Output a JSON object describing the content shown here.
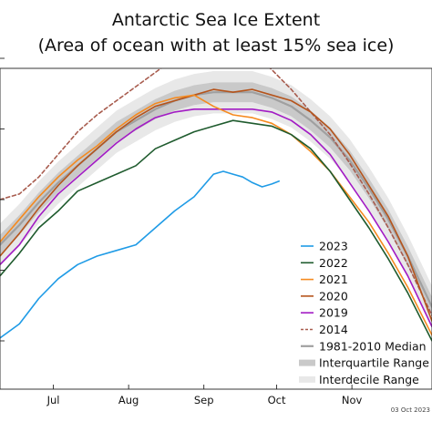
{
  "chart_data": {
    "type": "line",
    "title": "Antarctic Sea Ice Extent",
    "subtitle": "(Area of ocean with at least 15% sea ice)",
    "xlabel": "",
    "ylabel": "",
    "x_tick_labels": [
      "Jul",
      "Aug",
      "Sep",
      "Oct",
      "Nov"
    ],
    "x_day_of_year": {
      "range": [
        160,
        338
      ],
      "ticks": [
        182,
        213,
        244,
        274,
        305
      ]
    },
    "y_relative_scale": [
      0,
      1
    ],
    "legend_position": "lower-right",
    "footer_date": "03 Oct 2023",
    "series": [
      {
        "name": "2023",
        "style": "solid",
        "color": "#1f9be6",
        "width": 1.6,
        "x": [
          160,
          168,
          176,
          184,
          192,
          200,
          208,
          216,
          224,
          232,
          240,
          248,
          252,
          256,
          260,
          264,
          268,
          272,
          275
        ],
        "y": [
          0.11,
          0.16,
          0.25,
          0.32,
          0.37,
          0.4,
          0.42,
          0.44,
          0.5,
          0.56,
          0.61,
          0.69,
          0.7,
          0.69,
          0.68,
          0.66,
          0.645,
          0.655,
          0.665
        ]
      },
      {
        "name": "2022",
        "style": "solid",
        "color": "#1f5b2e",
        "width": 1.6,
        "x": [
          160,
          168,
          176,
          184,
          192,
          200,
          208,
          216,
          224,
          232,
          240,
          248,
          256,
          264,
          272,
          280,
          288,
          296,
          304,
          312,
          320,
          328,
          338
        ],
        "y": [
          0.33,
          0.41,
          0.5,
          0.56,
          0.63,
          0.66,
          0.69,
          0.72,
          0.78,
          0.81,
          0.84,
          0.86,
          0.88,
          0.87,
          0.86,
          0.83,
          0.78,
          0.7,
          0.6,
          0.5,
          0.39,
          0.27,
          0.1
        ]
      },
      {
        "name": "2021",
        "style": "solid",
        "color": "#f58a1f",
        "width": 1.6,
        "x": [
          160,
          168,
          176,
          184,
          192,
          200,
          208,
          216,
          224,
          232,
          240,
          248,
          256,
          264,
          272,
          280,
          288,
          296,
          304,
          312,
          320,
          328,
          338
        ],
        "y": [
          0.45,
          0.53,
          0.61,
          0.68,
          0.74,
          0.79,
          0.85,
          0.9,
          0.94,
          0.96,
          0.97,
          0.93,
          0.9,
          0.89,
          0.87,
          0.83,
          0.77,
          0.7,
          0.61,
          0.52,
          0.41,
          0.29,
          0.12
        ]
      },
      {
        "name": "2020",
        "style": "solid",
        "color": "#b5541c",
        "width": 1.6,
        "x": [
          160,
          168,
          176,
          184,
          192,
          200,
          208,
          216,
          224,
          232,
          240,
          248,
          256,
          264,
          272,
          280,
          288,
          296,
          304,
          312,
          320,
          328,
          338
        ],
        "y": [
          0.4,
          0.48,
          0.57,
          0.65,
          0.72,
          0.78,
          0.84,
          0.89,
          0.93,
          0.95,
          0.97,
          0.99,
          0.98,
          0.99,
          0.97,
          0.95,
          0.91,
          0.85,
          0.76,
          0.65,
          0.54,
          0.4,
          0.17
        ]
      },
      {
        "name": "2019",
        "style": "solid",
        "color": "#a21bc4",
        "width": 1.6,
        "x": [
          160,
          168,
          176,
          184,
          192,
          200,
          208,
          216,
          224,
          232,
          240,
          248,
          256,
          264,
          272,
          280,
          288,
          296,
          304,
          312,
          320,
          328,
          338
        ],
        "y": [
          0.37,
          0.44,
          0.54,
          0.62,
          0.68,
          0.74,
          0.8,
          0.85,
          0.89,
          0.91,
          0.92,
          0.92,
          0.92,
          0.92,
          0.91,
          0.88,
          0.83,
          0.76,
          0.66,
          0.56,
          0.45,
          0.33,
          0.15
        ]
      },
      {
        "name": "2014",
        "style": "dashed",
        "color": "#a85c4e",
        "width": 1.6,
        "x": [
          160,
          168,
          176,
          184,
          192,
          200,
          208,
          216,
          224,
          232,
          240,
          248,
          256,
          264,
          272,
          280,
          288,
          296,
          304,
          312,
          320,
          328,
          338
        ],
        "y": [
          0.6,
          0.62,
          0.68,
          0.76,
          0.84,
          0.9,
          0.95,
          1.0,
          1.05,
          1.1,
          1.15,
          1.21,
          1.17,
          1.12,
          1.06,
          0.99,
          0.91,
          0.83,
          0.73,
          0.62,
          0.5,
          0.37,
          0.19
        ]
      },
      {
        "name": "1981-2010 Median",
        "style": "solid",
        "color": "#a0a0a0",
        "width": 2.2,
        "x": [
          160,
          168,
          176,
          184,
          192,
          200,
          208,
          216,
          224,
          232,
          240,
          248,
          256,
          264,
          272,
          280,
          288,
          296,
          304,
          312,
          320,
          328,
          338
        ],
        "y": [
          0.44,
          0.51,
          0.59,
          0.66,
          0.72,
          0.78,
          0.84,
          0.88,
          0.92,
          0.95,
          0.97,
          0.98,
          0.98,
          0.98,
          0.96,
          0.93,
          0.88,
          0.82,
          0.74,
          0.64,
          0.53,
          0.4,
          0.22
        ]
      }
    ],
    "bands": [
      {
        "name": "Interquartile Range",
        "color": "#c9c9c9",
        "half_width": 0.035
      },
      {
        "name": "Interdecile Range",
        "color": "#e8e8e8",
        "half_width": 0.075
      }
    ]
  }
}
